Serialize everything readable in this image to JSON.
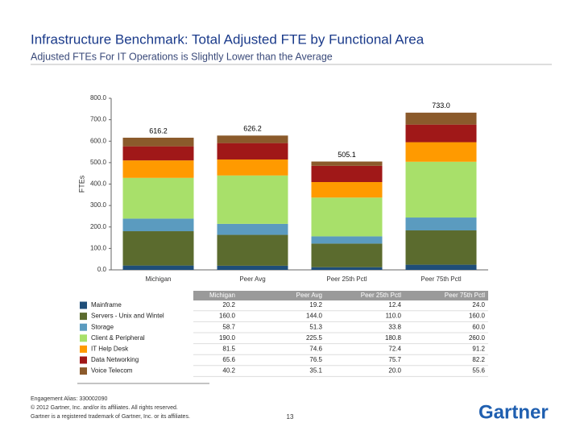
{
  "header": {
    "title": "Infrastructure Benchmark: Total Adjusted FTE by Functional Area",
    "subtitle": "Adjusted FTEs For IT Operations is Slightly Lower than the Average"
  },
  "chart_data": {
    "type": "bar",
    "stacked": true,
    "y_label": "FTEs",
    "categories": [
      "Michigan",
      "Peer Avg",
      "Peer 25th Pctl",
      "Peer 75th Pctl"
    ],
    "ylim": [
      0,
      800
    ],
    "yticks": [
      {
        "value": 0,
        "label": "0.0"
      },
      {
        "value": 100,
        "label": "100.0"
      },
      {
        "value": 200,
        "label": "200.0"
      },
      {
        "value": 300,
        "label": "300.0"
      },
      {
        "value": 400,
        "label": "400.0"
      },
      {
        "value": 500,
        "label": "500.0"
      },
      {
        "value": 600,
        "label": "600.0"
      },
      {
        "value": 700,
        "label": "700.0"
      },
      {
        "value": 800,
        "label": "800.0"
      }
    ],
    "total_labels": [
      "616.2",
      "626.2",
      "505.1",
      "733.0"
    ],
    "series": [
      {
        "name": "Mainframe",
        "color": "#1f4e79",
        "values": [
          20.2,
          19.2,
          12.4,
          24.0
        ],
        "value_labels": [
          "20.2",
          "19.2",
          "12.4",
          "24.0"
        ]
      },
      {
        "name": "Servers - Unix and Wintel",
        "color": "#5b6b2e",
        "values": [
          160.0,
          144.0,
          110.0,
          160.0
        ],
        "value_labels": [
          "160.0",
          "144.0",
          "110.0",
          "160.0"
        ]
      },
      {
        "name": "Storage",
        "color": "#5b9bbf",
        "values": [
          58.7,
          51.3,
          33.8,
          60.0
        ],
        "value_labels": [
          "58.7",
          "51.3",
          "33.8",
          "60.0"
        ]
      },
      {
        "name": "Client & Peripheral",
        "color": "#a8e06a",
        "values": [
          190.0,
          225.5,
          180.8,
          260.0
        ],
        "value_labels": [
          "190.0",
          "225.5",
          "180.8",
          "260.0"
        ]
      },
      {
        "name": "IT Help Desk",
        "color": "#ff9a00",
        "values": [
          81.5,
          74.6,
          72.4,
          91.2
        ],
        "value_labels": [
          "81.5",
          "74.6",
          "72.4",
          "91.2"
        ]
      },
      {
        "name": "Data Networking",
        "color": "#a01818",
        "values": [
          65.6,
          76.5,
          75.7,
          82.2
        ],
        "value_labels": [
          "65.6",
          "76.5",
          "75.7",
          "82.2"
        ]
      },
      {
        "name": "Voice Telecom",
        "color": "#8b5a2b",
        "values": [
          40.2,
          35.1,
          20.0,
          55.6
        ],
        "value_labels": [
          "40.2",
          "35.1",
          "20.0",
          "55.6"
        ]
      }
    ]
  },
  "footer": {
    "lines": [
      "Engagement Alias: 330002090",
      "© 2012 Gartner, Inc. and/or its affiliates. All rights reserved.",
      "Gartner is a registered trademark of Gartner, Inc. or its affiliates."
    ],
    "page_number": "13",
    "logo": "Gartner"
  }
}
